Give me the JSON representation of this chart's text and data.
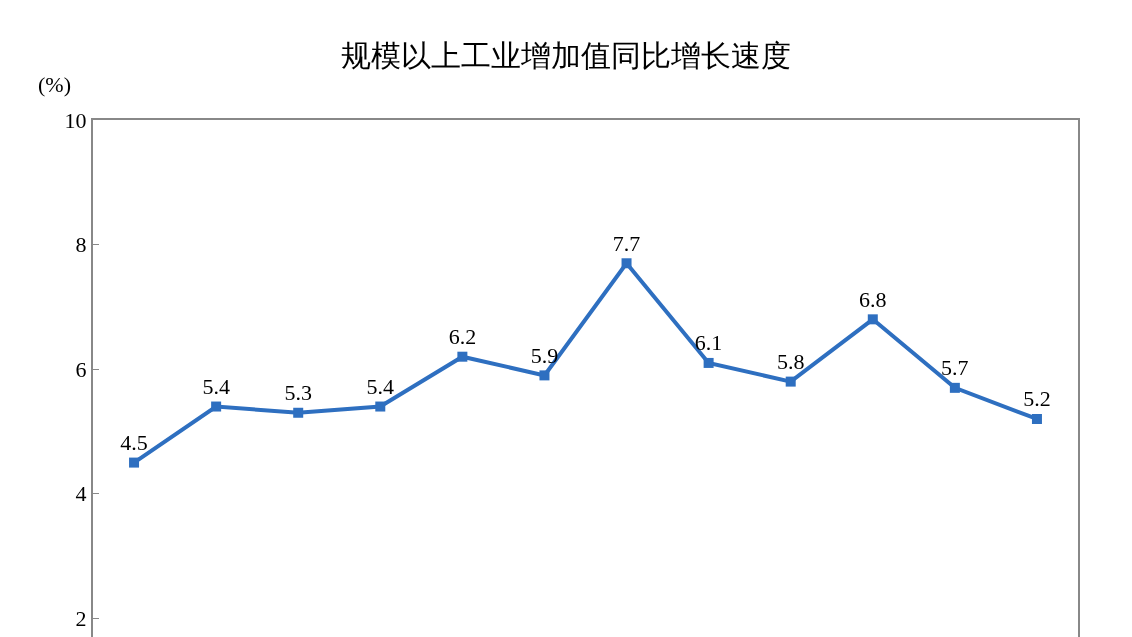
{
  "chart_data": {
    "type": "line",
    "title": "规模以上工业增加值同比增长速度",
    "ylabel": "(%)",
    "categories": [
      null,
      null,
      null,
      null,
      null,
      null,
      null,
      null,
      null,
      null,
      null,
      null
    ],
    "series": [
      {
        "color": "#2e6fc0",
        "values": [
          4.5,
          5.4,
          5.3,
          5.4,
          6.2,
          5.9,
          7.7,
          6.1,
          5.8,
          6.8,
          5.7,
          5.2
        ]
      }
    ],
    "ylim": [
      1.7,
      10
    ],
    "yticks": [
      2,
      4,
      6,
      8,
      10
    ],
    "data_labels": true,
    "marker": "square"
  }
}
